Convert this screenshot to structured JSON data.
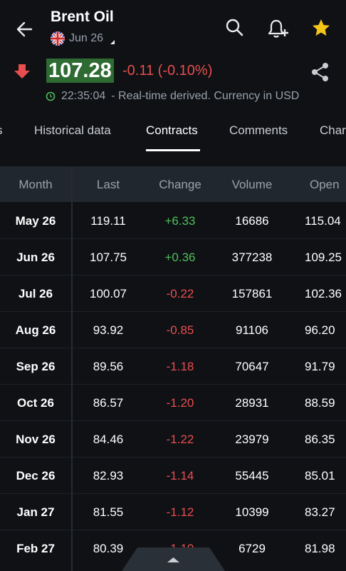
{
  "header": {
    "title": "Brent Oil",
    "subtitle": "Jun 26"
  },
  "quote": {
    "price": "107.28",
    "change": "-0.11 (-0.10%)",
    "time": "22:35:04",
    "note": "- Real-time derived. Currency in USD"
  },
  "tabs": [
    {
      "label": "s"
    },
    {
      "label": "Historical data"
    },
    {
      "label": "Contracts"
    },
    {
      "label": "Comments"
    },
    {
      "label": "Char"
    }
  ],
  "table": {
    "headers": [
      "Month",
      "Last",
      "Change",
      "Volume",
      "Open"
    ],
    "rows": [
      {
        "month": "May 26",
        "last": "119.11",
        "change": "+6.33",
        "volume": "16686",
        "open": "115.04"
      },
      {
        "month": "Jun 26",
        "last": "107.75",
        "change": "+0.36",
        "volume": "377238",
        "open": "109.25"
      },
      {
        "month": "Jul 26",
        "last": "100.07",
        "change": "-0.22",
        "volume": "157861",
        "open": "102.36"
      },
      {
        "month": "Aug 26",
        "last": "93.92",
        "change": "-0.85",
        "volume": "91106",
        "open": "96.20"
      },
      {
        "month": "Sep 26",
        "last": "89.56",
        "change": "-1.18",
        "volume": "70647",
        "open": "91.79"
      },
      {
        "month": "Oct 26",
        "last": "86.57",
        "change": "-1.20",
        "volume": "28931",
        "open": "88.59"
      },
      {
        "month": "Nov 26",
        "last": "84.46",
        "change": "-1.22",
        "volume": "23979",
        "open": "86.35"
      },
      {
        "month": "Dec 26",
        "last": "82.93",
        "change": "-1.14",
        "volume": "55445",
        "open": "85.01"
      },
      {
        "month": "Jan 27",
        "last": "81.55",
        "change": "-1.12",
        "volume": "10399",
        "open": "83.27"
      },
      {
        "month": "Feb 27",
        "last": "80.39",
        "change": "-1.10",
        "volume": "6729",
        "open": "81.98"
      }
    ]
  },
  "colors": {
    "background": "#0f1115",
    "price_highlight": "#2e6b33",
    "positive": "#4fbf59",
    "negative": "#e84e4e",
    "favorite": "#f5c518"
  },
  "icons": {
    "back": "arrow-left-icon",
    "search": "search-icon",
    "alert": "bell-plus-icon",
    "favorite": "star-icon",
    "share": "share-icon",
    "down": "arrow-down-icon",
    "clock": "clock-icon",
    "flag": "uk-flag-icon",
    "expand": "chevron-up-icon"
  }
}
